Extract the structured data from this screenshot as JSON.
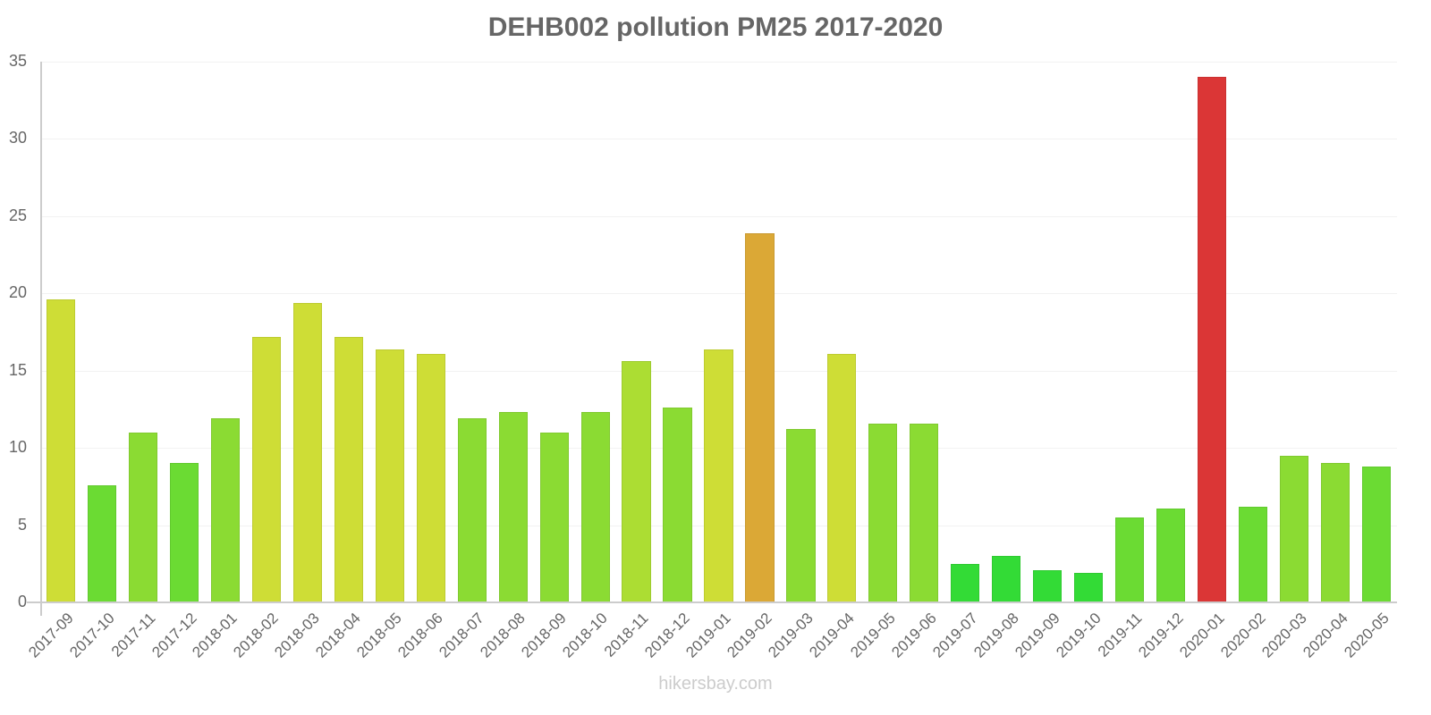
{
  "chart_data": {
    "type": "bar",
    "title": "DEHB002 pollution PM25 2017-2020",
    "xlabel": "",
    "ylabel": "",
    "ylim": [
      0,
      35
    ],
    "yticks": [
      0,
      5,
      10,
      15,
      20,
      25,
      30,
      35
    ],
    "grid": true,
    "legend": null,
    "categories": [
      "2017-09",
      "2017-10",
      "2017-11",
      "2017-12",
      "2018-01",
      "2018-02",
      "2018-03",
      "2018-04",
      "2018-05",
      "2018-06",
      "2018-07",
      "2018-08",
      "2018-09",
      "2018-10",
      "2018-11",
      "2018-12",
      "2019-01",
      "2019-02",
      "2019-03",
      "2019-04",
      "2019-05",
      "2019-06",
      "2019-07",
      "2019-08",
      "2019-09",
      "2019-10",
      "2019-11",
      "2019-12",
      "2020-01",
      "2020-02",
      "2020-03",
      "2020-04",
      "2020-05"
    ],
    "values": [
      19.6,
      7.6,
      11.0,
      9.0,
      11.9,
      17.2,
      19.4,
      17.2,
      16.4,
      16.1,
      11.9,
      12.3,
      11.0,
      12.3,
      15.6,
      12.6,
      16.4,
      23.9,
      11.2,
      16.1,
      11.6,
      11.6,
      2.5,
      3.0,
      2.1,
      1.9,
      5.5,
      6.1,
      34.0,
      6.2,
      9.5,
      9.0,
      8.8
    ],
    "colors": [
      "#cedd36",
      "#6bdb33",
      "#8bdb33",
      "#6bdb33",
      "#8bdb33",
      "#cedd36",
      "#cedd36",
      "#cedd36",
      "#cedd36",
      "#cedd36",
      "#8bdb33",
      "#8bdb33",
      "#8bdb33",
      "#8bdb33",
      "#acdd33",
      "#8bdb33",
      "#cedd36",
      "#dba836",
      "#8bdb33",
      "#cedd36",
      "#8bdb33",
      "#8bdb33",
      "#33db36",
      "#33db36",
      "#33db36",
      "#33db36",
      "#6bdb33",
      "#6bdb33",
      "#db3636",
      "#6bdb33",
      "#8bdb33",
      "#8bdb33",
      "#6bdb33"
    ]
  },
  "footer": {
    "watermark": "hikersbay.com"
  }
}
